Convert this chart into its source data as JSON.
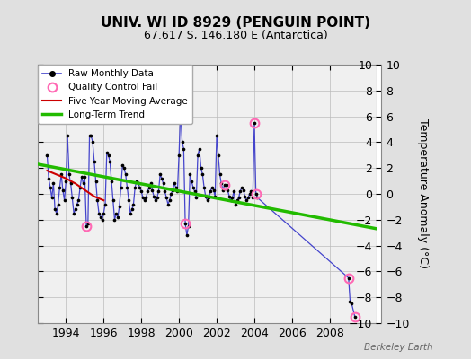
{
  "title": "UNIV. WI ID 8929 (PENGUIN POINT)",
  "subtitle": "67.617 S, 146.180 E (Antarctica)",
  "ylabel": "Temperature Anomaly (°C)",
  "watermark": "Berkeley Earth",
  "xlim": [
    1992.5,
    2010.5
  ],
  "ylim": [
    -10,
    10
  ],
  "yticks": [
    -10,
    -8,
    -6,
    -4,
    -2,
    0,
    2,
    4,
    6,
    8,
    10
  ],
  "xticks": [
    1994,
    1996,
    1998,
    2000,
    2002,
    2004,
    2006,
    2008
  ],
  "fig_bg": "#e0e0e0",
  "plot_bg": "#f0f0f0",
  "raw_color": "#4444cc",
  "marker_color": "#000000",
  "qc_color": "#ff69b4",
  "ma_color": "#cc0000",
  "trend_color": "#22bb00",
  "grid_color": "#bbbbbb",
  "raw_data": [
    [
      1993.0,
      3.0
    ],
    [
      1993.083,
      1.2
    ],
    [
      1993.167,
      0.5
    ],
    [
      1993.25,
      -0.3
    ],
    [
      1993.333,
      0.8
    ],
    [
      1993.417,
      -1.2
    ],
    [
      1993.5,
      -1.5
    ],
    [
      1993.583,
      -0.8
    ],
    [
      1993.667,
      0.5
    ],
    [
      1993.75,
      1.5
    ],
    [
      1993.833,
      0.3
    ],
    [
      1993.917,
      -0.5
    ],
    [
      1994.0,
      1.0
    ],
    [
      1994.083,
      4.5
    ],
    [
      1994.167,
      1.5
    ],
    [
      1994.25,
      0.8
    ],
    [
      1994.333,
      -0.3
    ],
    [
      1994.417,
      -1.5
    ],
    [
      1994.5,
      -1.2
    ],
    [
      1994.583,
      -0.8
    ],
    [
      1994.667,
      -0.5
    ],
    [
      1994.75,
      0.5
    ],
    [
      1994.833,
      1.3
    ],
    [
      1994.917,
      0.8
    ],
    [
      1995.0,
      1.3
    ],
    [
      1995.083,
      -2.5
    ],
    [
      1995.167,
      -2.3
    ],
    [
      1995.25,
      4.5
    ],
    [
      1995.333,
      4.5
    ],
    [
      1995.417,
      4.0
    ],
    [
      1995.5,
      2.5
    ],
    [
      1995.583,
      1.0
    ],
    [
      1995.667,
      -0.5
    ],
    [
      1995.75,
      -1.5
    ],
    [
      1995.833,
      -1.8
    ],
    [
      1995.917,
      -2.0
    ],
    [
      1996.0,
      -1.5
    ],
    [
      1996.083,
      -0.8
    ],
    [
      1996.167,
      3.2
    ],
    [
      1996.25,
      3.0
    ],
    [
      1996.333,
      2.5
    ],
    [
      1996.417,
      1.0
    ],
    [
      1996.5,
      -0.5
    ],
    [
      1996.583,
      -2.0
    ],
    [
      1996.667,
      -1.5
    ],
    [
      1996.75,
      -1.8
    ],
    [
      1996.833,
      -1.0
    ],
    [
      1996.917,
      0.5
    ],
    [
      1997.0,
      2.2
    ],
    [
      1997.083,
      2.0
    ],
    [
      1997.167,
      1.5
    ],
    [
      1997.25,
      0.5
    ],
    [
      1997.333,
      -0.5
    ],
    [
      1997.417,
      -1.5
    ],
    [
      1997.5,
      -1.2
    ],
    [
      1997.583,
      -0.8
    ],
    [
      1997.667,
      0.5
    ],
    [
      1997.75,
      1.0
    ],
    [
      1997.833,
      0.8
    ],
    [
      1997.917,
      0.5
    ],
    [
      1998.0,
      0.2
    ],
    [
      1998.083,
      -0.3
    ],
    [
      1998.167,
      -0.5
    ],
    [
      1998.25,
      -0.3
    ],
    [
      1998.333,
      0.2
    ],
    [
      1998.417,
      0.5
    ],
    [
      1998.5,
      0.8
    ],
    [
      1998.583,
      0.3
    ],
    [
      1998.667,
      -0.2
    ],
    [
      1998.75,
      -0.5
    ],
    [
      1998.833,
      -0.3
    ],
    [
      1998.917,
      0.2
    ],
    [
      1999.0,
      1.5
    ],
    [
      1999.083,
      1.2
    ],
    [
      1999.167,
      0.8
    ],
    [
      1999.25,
      0.2
    ],
    [
      1999.333,
      -0.3
    ],
    [
      1999.417,
      -0.8
    ],
    [
      1999.5,
      -0.5
    ],
    [
      1999.583,
      0.0
    ],
    [
      1999.667,
      0.3
    ],
    [
      1999.75,
      0.8
    ],
    [
      1999.833,
      0.5
    ],
    [
      1999.917,
      0.2
    ],
    [
      2000.0,
      3.0
    ],
    [
      2000.083,
      6.5
    ],
    [
      2000.167,
      4.0
    ],
    [
      2000.25,
      3.5
    ],
    [
      2000.333,
      -2.3
    ],
    [
      2000.417,
      -3.2
    ],
    [
      2000.5,
      -2.5
    ],
    [
      2000.583,
      1.5
    ],
    [
      2000.667,
      1.0
    ],
    [
      2000.75,
      0.5
    ],
    [
      2000.833,
      0.2
    ],
    [
      2000.917,
      -0.3
    ],
    [
      2001.0,
      3.0
    ],
    [
      2001.083,
      3.5
    ],
    [
      2001.167,
      2.0
    ],
    [
      2001.25,
      1.5
    ],
    [
      2001.333,
      0.5
    ],
    [
      2001.417,
      -0.2
    ],
    [
      2001.5,
      -0.5
    ],
    [
      2001.583,
      -0.3
    ],
    [
      2001.667,
      0.2
    ],
    [
      2001.75,
      0.5
    ],
    [
      2001.833,
      0.3
    ],
    [
      2001.917,
      -0.2
    ],
    [
      2002.0,
      4.5
    ],
    [
      2002.083,
      3.0
    ],
    [
      2002.167,
      1.5
    ],
    [
      2002.25,
      0.8
    ],
    [
      2002.333,
      0.3
    ],
    [
      2002.417,
      0.7
    ],
    [
      2002.5,
      0.7
    ],
    [
      2002.583,
      0.3
    ],
    [
      2002.667,
      -0.2
    ],
    [
      2002.75,
      -0.5
    ],
    [
      2002.833,
      -0.3
    ],
    [
      2002.917,
      0.2
    ],
    [
      2003.0,
      -0.8
    ],
    [
      2003.083,
      -0.5
    ],
    [
      2003.167,
      -0.3
    ],
    [
      2003.25,
      0.2
    ],
    [
      2003.333,
      0.5
    ],
    [
      2003.417,
      0.3
    ],
    [
      2003.5,
      -0.2
    ],
    [
      2003.583,
      -0.5
    ],
    [
      2003.667,
      -0.3
    ],
    [
      2003.75,
      0.0
    ],
    [
      2003.833,
      0.2
    ],
    [
      2003.917,
      -0.3
    ],
    [
      2004.0,
      5.5
    ],
    [
      2004.083,
      0.0
    ],
    [
      2004.167,
      -0.3
    ],
    [
      2009.0,
      -6.5
    ],
    [
      2009.083,
      -8.3
    ],
    [
      2009.167,
      -8.5
    ],
    [
      2009.333,
      -9.5
    ]
  ],
  "qc_fail_points": [
    [
      1995.083,
      -2.5
    ],
    [
      2000.333,
      -2.3
    ],
    [
      2002.417,
      0.7
    ],
    [
      2004.0,
      5.5
    ],
    [
      2004.083,
      0.0
    ],
    [
      2009.0,
      -6.5
    ],
    [
      2009.333,
      -9.5
    ]
  ],
  "moving_avg_data": [
    [
      1993.0,
      1.8
    ],
    [
      1993.5,
      1.5
    ],
    [
      1994.0,
      1.2
    ],
    [
      1994.5,
      0.8
    ],
    [
      1995.0,
      0.3
    ],
    [
      1995.5,
      -0.2
    ],
    [
      1996.0,
      -0.5
    ]
  ],
  "trend_data": [
    [
      1992.5,
      2.3
    ],
    [
      2010.5,
      -2.7
    ]
  ]
}
